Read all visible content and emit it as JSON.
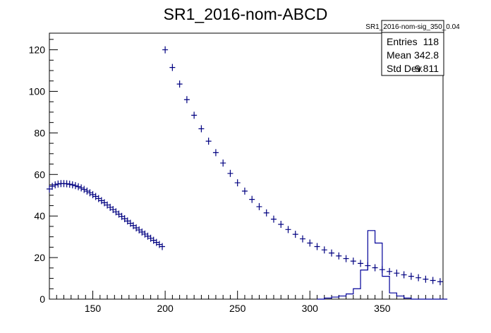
{
  "chart_data": {
    "type": "scatter",
    "title": "SR1_2016-nom-ABCD",
    "xlabel": "",
    "ylabel": "",
    "xlim": [
      120,
      392
    ],
    "ylim": [
      0,
      128
    ],
    "x_ticks": [
      150,
      200,
      250,
      300,
      350
    ],
    "y_ticks": [
      0,
      20,
      40,
      60,
      80,
      100,
      120
    ],
    "grid": false,
    "stats_box": {
      "name": "SR1_2016-nom-sig_350_0.04",
      "rows": [
        {
          "label": "Entries",
          "value": "118"
        },
        {
          "label": "Mean",
          "value": "342.8"
        },
        {
          "label": "Std Dev",
          "value": "9.811"
        }
      ],
      "placement": "top-right"
    },
    "colors": {
      "markers": "#000080",
      "histogram": "#000099",
      "axes": "#000000"
    },
    "series": [
      {
        "style": "cross-markers",
        "x": [
          120,
          122,
          124,
          126,
          128,
          130,
          132,
          134,
          136,
          138,
          140,
          142,
          144,
          146,
          148,
          150,
          152,
          154,
          156,
          158,
          160,
          162,
          164,
          166,
          168,
          170,
          172,
          174,
          176,
          178,
          180,
          182,
          184,
          186,
          188,
          190,
          192,
          194,
          196,
          198
        ],
        "y": [
          53,
          54.3,
          55,
          55.4,
          55.6,
          55.6,
          55.5,
          55.3,
          55,
          54.6,
          54.1,
          53.5,
          52.8,
          52,
          51.2,
          50.3,
          49.4,
          48.4,
          47.4,
          46.4,
          45.3,
          44.2,
          43.1,
          42,
          40.9,
          39.8,
          38.7,
          37.6,
          36.5,
          35.4,
          34.3,
          33.3,
          32.3,
          31.3,
          30.3,
          29.3,
          28.3,
          27.3,
          26.3,
          25.3
        ]
      },
      {
        "style": "cross-markers",
        "x": [
          200,
          205,
          210,
          215,
          220,
          225,
          230,
          235,
          240,
          245,
          250,
          255,
          260,
          265,
          270,
          275,
          280,
          285,
          290,
          295,
          300,
          305,
          310,
          315,
          320,
          325,
          330,
          335,
          340,
          345,
          350,
          355,
          360,
          365,
          370,
          375,
          380,
          385,
          390
        ],
        "y": [
          120,
          111.5,
          103.5,
          96,
          88.5,
          82,
          76,
          70.5,
          65.5,
          60.5,
          56,
          52,
          48,
          44.5,
          41.5,
          38.5,
          36,
          33.5,
          31.2,
          29,
          27,
          25.3,
          23.7,
          22.2,
          20.8,
          19.5,
          18.3,
          17.2,
          16.1,
          15.1,
          14.2,
          13.3,
          12.5,
          11.7,
          11,
          10.3,
          9.6,
          9,
          8.4
        ]
      },
      {
        "style": "step-histogram",
        "x": [
          305,
          310,
          315,
          320,
          325,
          330,
          335,
          340,
          345,
          350,
          355,
          360,
          365,
          370,
          375,
          380,
          385,
          390
        ],
        "y": [
          0,
          0.5,
          1,
          1.5,
          2.5,
          5,
          14,
          33,
          27,
          11,
          3,
          1.5,
          0.5,
          0,
          0,
          0,
          0,
          0
        ]
      }
    ]
  }
}
